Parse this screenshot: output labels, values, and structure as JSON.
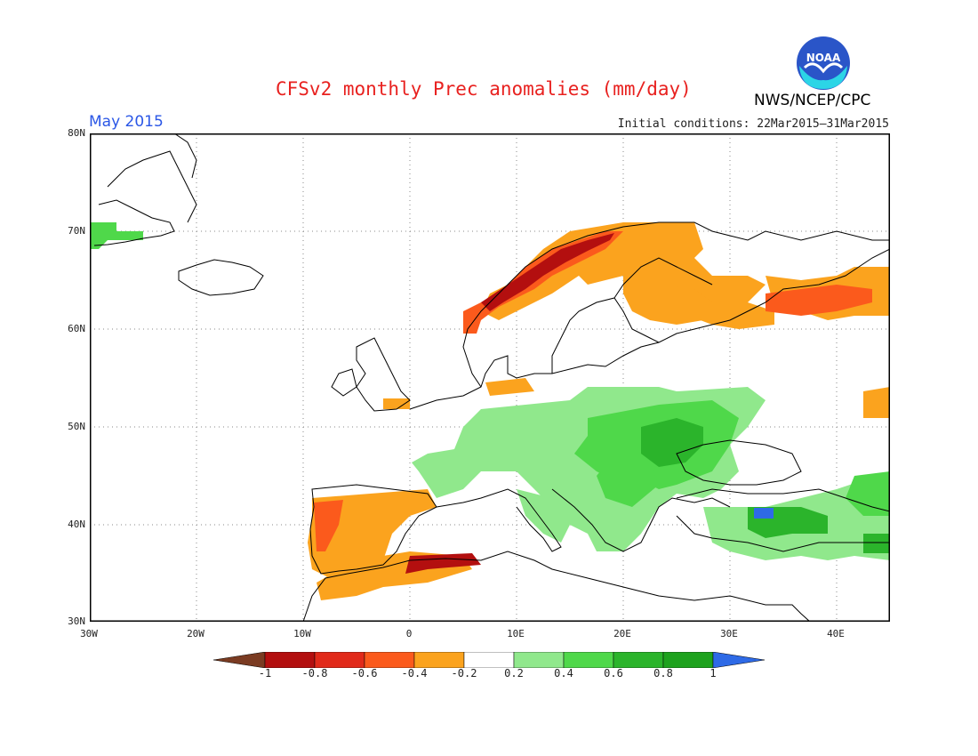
{
  "header": {
    "title": "CFSv2 monthly Prec anomalies (mm/day)",
    "month": "May 2015",
    "initial_conditions": "Initial conditions: 22Mar2015–31Mar2015",
    "agency": "NWS/NCEP/CPC",
    "logo_text": "NOAA"
  },
  "axes": {
    "lat_labels": [
      "80N",
      "70N",
      "60N",
      "50N",
      "40N",
      "30N"
    ],
    "lon_labels": [
      "30W",
      "20W",
      "10W",
      "0",
      "10E",
      "20E",
      "30E",
      "40E"
    ]
  },
  "legend": {
    "labels": [
      "-1",
      "-0.8",
      "-0.6",
      "-0.4",
      "-0.2",
      "0.2",
      "0.4",
      "0.6",
      "0.8",
      "1"
    ],
    "colors": {
      "below_min": "#7a3b22",
      "bins": [
        "#b30f0f",
        "#e12a1a",
        "#fb5a1c",
        "#fba31e",
        "#ffffff",
        "#90e88c",
        "#4fd84a",
        "#2bb42b",
        "#1ea21e"
      ],
      "above_max": "#2e6ae6"
    }
  },
  "chart_data": {
    "type": "heatmap",
    "title": "CFSv2 monthly Prec anomalies (mm/day)",
    "lon_range": [
      -30,
      45
    ],
    "lat_range": [
      30,
      80
    ],
    "units": "mm/day",
    "regions": [
      {
        "name": "Norway coast",
        "category": "-0.8 to -0.6"
      },
      {
        "name": "Northern Scandinavia",
        "category": "-0.6 to -0.2"
      },
      {
        "name": "Northwest Russia",
        "category": "-0.6 to -0.2"
      },
      {
        "name": "Iberian Peninsula",
        "category": "-0.6 to -0.2"
      },
      {
        "name": "North Africa coast",
        "category": "-0.8 to -0.2"
      },
      {
        "name": "Central and Eastern Europe",
        "category": "0.2 to 0.8"
      },
      {
        "name": "Balkans",
        "category": "0.2 to 0.8"
      },
      {
        "name": "Turkey",
        "category": "0.2 to >1"
      },
      {
        "name": "East Greenland",
        "category": "0.2 to 0.6"
      }
    ]
  }
}
